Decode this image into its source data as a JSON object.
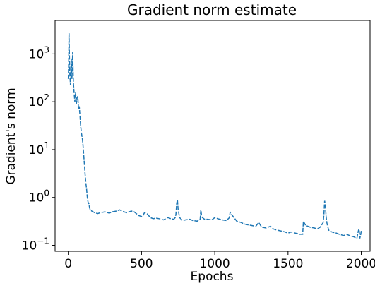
{
  "chart_data": {
    "type": "line",
    "title": "Gradient norm estimate",
    "xlabel": "Epochs",
    "ylabel": "Gradient's norm",
    "xlim": [
      -90,
      2060
    ],
    "ylim": [
      0.075,
      5000
    ],
    "yscale": "log",
    "grid": false,
    "line_color": "#1f77b4",
    "line_style": "dashed",
    "x_ticks": [
      0,
      500,
      1000,
      1500,
      2000
    ],
    "x_tick_labels": [
      "0",
      "500",
      "1000",
      "1500",
      "2000"
    ],
    "y_ticks": [
      0.1,
      1,
      10,
      100,
      1000
    ],
    "y_tick_labels": [
      {
        "base": "10",
        "exp": "−1"
      },
      {
        "base": "10",
        "exp": "0"
      },
      {
        "base": "10",
        "exp": "1"
      },
      {
        "base": "10",
        "exp": "2"
      },
      {
        "base": "10",
        "exp": "3"
      }
    ],
    "series": [
      {
        "x": [
          0,
          3,
          5,
          8,
          10,
          15,
          20,
          25,
          30,
          35,
          40,
          45,
          50,
          55,
          60,
          65,
          70,
          75,
          80,
          85,
          90,
          95,
          100,
          105,
          110,
          115,
          120,
          125,
          130,
          135,
          140,
          145,
          150,
          160,
          170,
          180,
          200,
          220,
          250,
          280,
          300,
          330,
          350,
          380,
          400,
          430,
          450,
          480,
          500,
          510,
          520,
          540,
          560,
          580,
          600,
          620,
          650,
          680,
          700,
          720,
          730,
          735,
          740,
          745,
          750,
          760,
          780,
          800,
          830,
          850,
          880,
          900,
          905,
          910,
          915,
          930,
          950,
          980,
          1000,
          1020,
          1050,
          1080,
          1100,
          1105,
          1110,
          1120,
          1150,
          1180,
          1200,
          1220,
          1250,
          1280,
          1300,
          1320,
          1350,
          1380,
          1400,
          1420,
          1450,
          1480,
          1500,
          1520,
          1550,
          1580,
          1600,
          1605,
          1620,
          1650,
          1680,
          1700,
          1720,
          1740,
          1745,
          1750,
          1755,
          1760,
          1765,
          1770,
          1780,
          1800,
          1830,
          1850,
          1880,
          1900,
          1920,
          1950,
          1970,
          1980,
          1985,
          1990,
          1995,
          2000
        ],
        "y": [
          300,
          700,
          2700,
          900,
          400,
          220,
          800,
          300,
          1100,
          250,
          150,
          100,
          160,
          90,
          120,
          130,
          70,
          80,
          50,
          30,
          22,
          18,
          13,
          8,
          5,
          3,
          2,
          1.5,
          1.0,
          0.8,
          0.75,
          0.62,
          0.55,
          0.52,
          0.5,
          0.48,
          0.46,
          0.48,
          0.5,
          0.47,
          0.5,
          0.52,
          0.55,
          0.5,
          0.48,
          0.52,
          0.5,
          0.42,
          0.4,
          0.42,
          0.48,
          0.45,
          0.38,
          0.36,
          0.37,
          0.36,
          0.34,
          0.38,
          0.36,
          0.35,
          0.38,
          0.45,
          0.75,
          0.9,
          0.55,
          0.38,
          0.33,
          0.34,
          0.35,
          0.33,
          0.32,
          0.35,
          0.55,
          0.42,
          0.38,
          0.35,
          0.35,
          0.34,
          0.38,
          0.36,
          0.34,
          0.33,
          0.38,
          0.5,
          0.45,
          0.42,
          0.32,
          0.3,
          0.28,
          0.27,
          0.26,
          0.25,
          0.3,
          0.24,
          0.23,
          0.25,
          0.22,
          0.21,
          0.2,
          0.19,
          0.18,
          0.19,
          0.18,
          0.17,
          0.17,
          0.32,
          0.26,
          0.24,
          0.23,
          0.22,
          0.24,
          0.3,
          0.45,
          0.85,
          0.65,
          0.4,
          0.3,
          0.25,
          0.2,
          0.19,
          0.18,
          0.17,
          0.16,
          0.17,
          0.16,
          0.15,
          0.14,
          0.2,
          0.22,
          0.14,
          0.16,
          0.2
        ]
      }
    ]
  }
}
